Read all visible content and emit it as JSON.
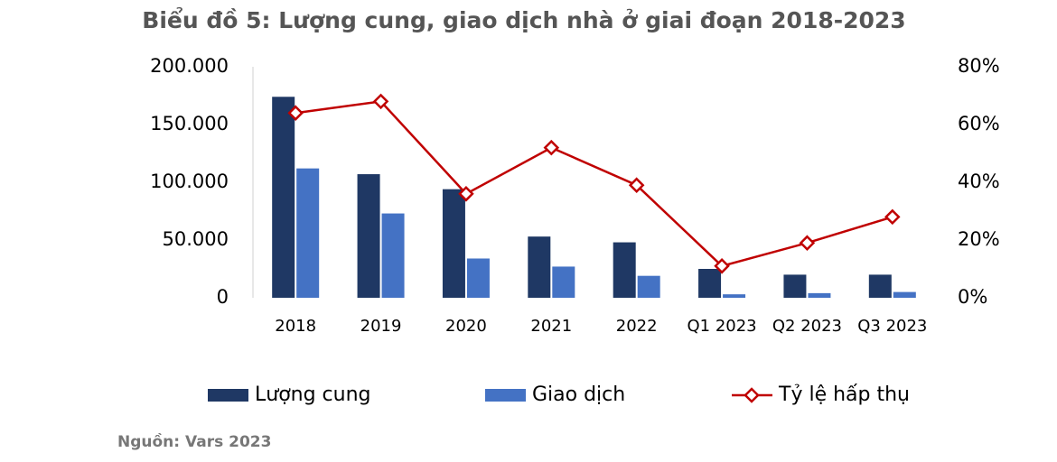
{
  "chart_data": {
    "type": "bar-line",
    "title": "Biểu đồ 5: Lượng cung, giao dịch nhà ở giai đoạn 2018-2023",
    "source": "Nguồn: Vars 2023",
    "categories": [
      "2018",
      "2019",
      "2020",
      "2021",
      "2022",
      "Q1 2023",
      "Q2 2023",
      "Q3 2023"
    ],
    "series": [
      {
        "name": "Lượng cung",
        "type": "bar",
        "color": "#1f3864",
        "values": [
          174000,
          107000,
          94000,
          53000,
          48000,
          25000,
          20000,
          20000
        ]
      },
      {
        "name": "Giao dịch",
        "type": "bar",
        "color": "#4472c4",
        "values": [
          112000,
          73000,
          34000,
          27000,
          19000,
          3000,
          4000,
          5000
        ]
      },
      {
        "name": "Tỷ lệ hấp thụ",
        "type": "line",
        "axis": "y2",
        "color": "#c00000",
        "values": [
          64,
          68,
          36,
          52,
          39,
          11,
          19,
          28
        ]
      }
    ],
    "ylim": [
      0,
      200000
    ],
    "yticks": [
      0,
      {
        "value": 50000,
        "label": "50.000"
      },
      {
        "value": 100000,
        "label": "100.000"
      },
      {
        "value": 150000,
        "label": "150.000"
      },
      {
        "value": 200000,
        "label": "200.000"
      }
    ],
    "y2lim": [
      0,
      80
    ],
    "y2ticks": [
      {
        "value": 0,
        "label": "0%"
      },
      {
        "value": 20,
        "label": "20%"
      },
      {
        "value": 40,
        "label": "40%"
      },
      {
        "value": 60,
        "label": "60%"
      },
      {
        "value": 80,
        "label": "80%"
      }
    ]
  }
}
